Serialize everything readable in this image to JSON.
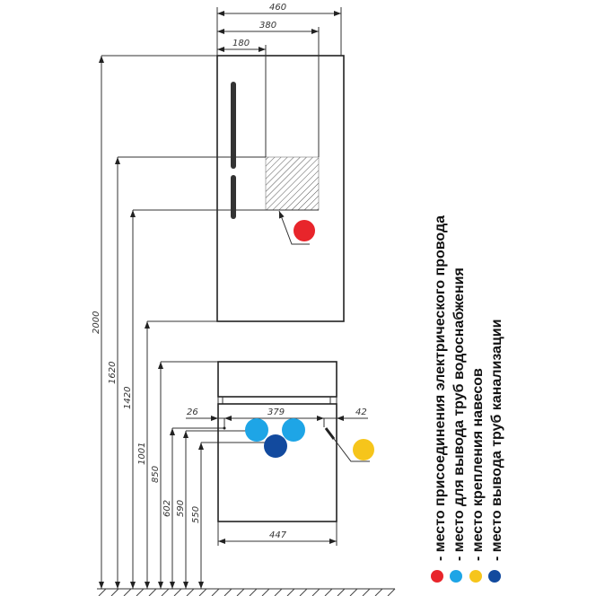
{
  "dimensions": {
    "top_width": "460",
    "top_inner": "380",
    "top_offset": "180",
    "h_total": "2000",
    "h_electric_top": "1620",
    "h_electric_bottom": "1420",
    "h_top_cabinet_bottom": "1001",
    "h_lower_top": "850",
    "h_602": "602",
    "h_590": "590",
    "h_550": "550",
    "left_offset": "26",
    "mount_spacing": "379",
    "right_offset": "42",
    "lower_width": "447"
  },
  "legend": {
    "items": [
      {
        "label": "- место присоединения электрического провода",
        "color": "#e8252b"
      },
      {
        "label": "- место для вывода труб водоснабжения",
        "color": "#1ea5e6"
      },
      {
        "label": "- место крепления навесов",
        "color": "#f6c51b"
      },
      {
        "label": "- место вывода труб канализации",
        "color": "#124a9e"
      }
    ]
  }
}
